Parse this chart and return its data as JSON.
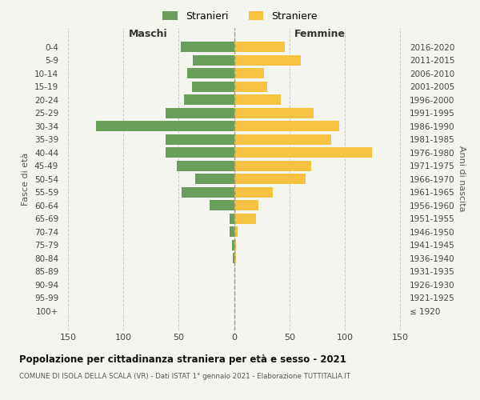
{
  "age_groups": [
    "100+",
    "95-99",
    "90-94",
    "85-89",
    "80-84",
    "75-79",
    "70-74",
    "65-69",
    "60-64",
    "55-59",
    "50-54",
    "45-49",
    "40-44",
    "35-39",
    "30-34",
    "25-29",
    "20-24",
    "15-19",
    "10-14",
    "5-9",
    "0-4"
  ],
  "birth_years": [
    "≤ 1920",
    "1921-1925",
    "1926-1930",
    "1931-1935",
    "1936-1940",
    "1941-1945",
    "1946-1950",
    "1951-1955",
    "1956-1960",
    "1961-1965",
    "1966-1970",
    "1971-1975",
    "1976-1980",
    "1981-1985",
    "1986-1990",
    "1991-1995",
    "1996-2000",
    "2001-2005",
    "2006-2010",
    "2011-2015",
    "2016-2020"
  ],
  "maschi": [
    0,
    0,
    0,
    0,
    1,
    2,
    4,
    4,
    22,
    47,
    35,
    52,
    62,
    62,
    125,
    62,
    45,
    38,
    42,
    37,
    48
  ],
  "femmine": [
    0,
    0,
    0,
    0,
    2,
    2,
    3,
    20,
    22,
    35,
    65,
    70,
    125,
    88,
    95,
    72,
    42,
    30,
    27,
    60,
    46
  ],
  "color_maschi": "#6a9e5b",
  "color_femmine": "#f5c242",
  "background_color": "#f5f5f0",
  "grid_color": "#cccccc",
  "title": "Popolazione per cittadinanza straniera per età e sesso - 2021",
  "subtitle": "COMUNE DI ISOLA DELLA SCALA (VR) - Dati ISTAT 1° gennaio 2021 - Elaborazione TUTTITALIA.IT",
  "legend_maschi": "Stranieri",
  "legend_femmine": "Straniere",
  "label_maschi": "Maschi",
  "label_femmine": "Femmine",
  "ylabel_left": "Fasce di età",
  "ylabel_right": "Anni di nascita",
  "xlim": 155,
  "bar_height": 0.78
}
